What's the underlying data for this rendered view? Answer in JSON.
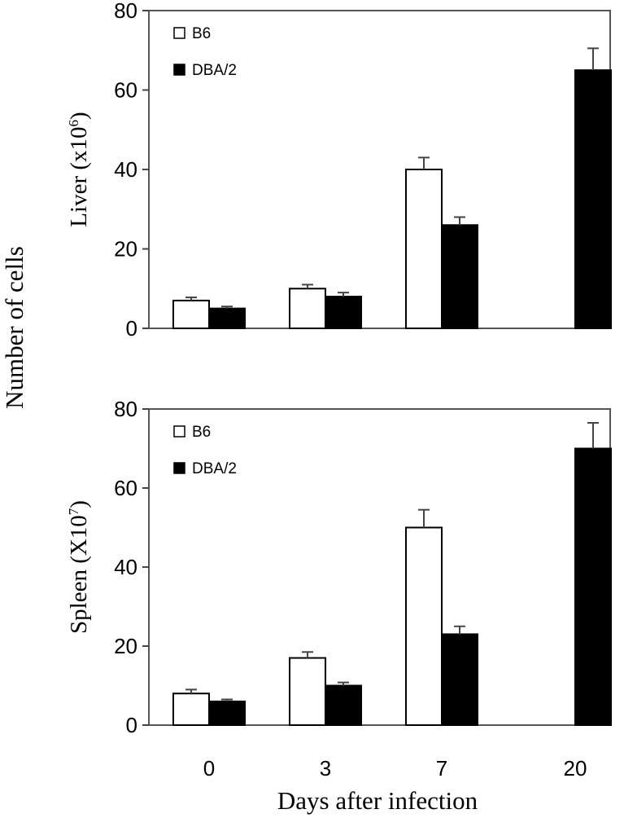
{
  "figure": {
    "shared_ylabel": "Number of cells",
    "shared_xlabel": "Days after infection"
  },
  "chart_data": [
    {
      "type": "bar",
      "ylabel": "Liver (x10",
      "ylabel_sup": "6",
      "ylabel_close": ")",
      "categories": [
        "0",
        "3",
        "7",
        "20"
      ],
      "ylim": [
        0,
        80
      ],
      "yticks": [
        0,
        20,
        40,
        60,
        80
      ],
      "legend_position": "top-left",
      "series": [
        {
          "name": "B6",
          "color": "#ffffff",
          "values": [
            7,
            10,
            40,
            null
          ],
          "errors": [
            0.8,
            1,
            3,
            null
          ]
        },
        {
          "name": "DBA/2",
          "color": "#000000",
          "values": [
            5,
            8,
            26,
            65
          ],
          "errors": [
            0.5,
            1,
            2,
            5.5
          ]
        }
      ]
    },
    {
      "type": "bar",
      "ylabel": "Spleen (X10",
      "ylabel_sup": "7",
      "ylabel_close": ")",
      "categories": [
        "0",
        "3",
        "7",
        "20"
      ],
      "ylim": [
        0,
        80
      ],
      "yticks": [
        0,
        20,
        40,
        60,
        80
      ],
      "legend_position": "top-left",
      "series": [
        {
          "name": "B6",
          "color": "#ffffff",
          "values": [
            8,
            17,
            50,
            null
          ],
          "errors": [
            1,
            1.5,
            4.5,
            null
          ]
        },
        {
          "name": "DBA/2",
          "color": "#000000",
          "values": [
            6,
            10,
            23,
            70
          ],
          "errors": [
            0.5,
            0.8,
            2,
            6.5
          ]
        }
      ]
    }
  ]
}
